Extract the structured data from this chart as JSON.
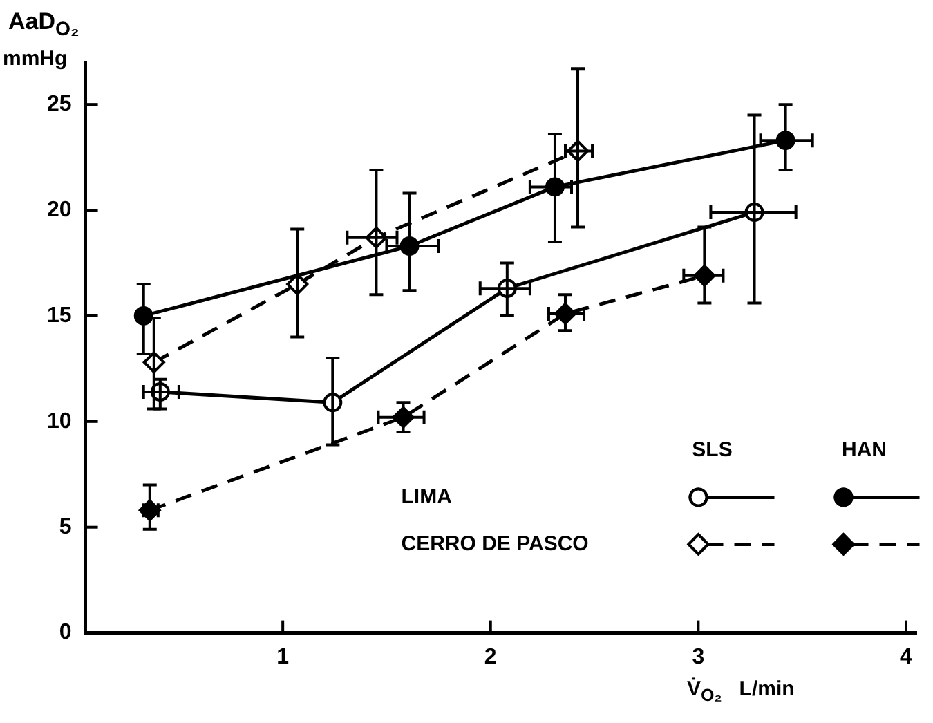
{
  "chart_data": {
    "type": "line",
    "ylabel": "AaD$_{O₂}$ mmHg",
    "xlabel": "V̇$_{O₂}$   L/min",
    "xlim": [
      0.05,
      4.05
    ],
    "xticks": [
      1,
      2,
      3,
      4
    ],
    "ylim": [
      0,
      27
    ],
    "yticks": [
      0,
      5,
      10,
      15,
      20,
      25
    ],
    "grid": false,
    "annotations": [
      "SLS",
      "HAN",
      "LIMA",
      "CERRO DE PASCO"
    ],
    "series": [
      {
        "color": "#000000",
        "marker": "circle",
        "line_style": "solid",
        "x": [
          0.41,
          1.24,
          2.08,
          3.27
        ],
        "values": [
          11.4,
          10.9,
          16.3,
          19.9
        ],
        "errors": [
          [
            10.6,
            12.0
          ],
          [
            8.9,
            13.0
          ],
          [
            15.0,
            17.5
          ],
          [
            15.6,
            24.5
          ]
        ],
        "xerrors": [
          [
            0.33,
            0.5
          ],
          null,
          [
            1.95,
            2.19
          ],
          [
            3.06,
            3.47
          ]
        ]
      },
      {
        "color": "#000000",
        "marker": "circle",
        "line_style": "solid",
        "x": [
          0.33,
          1.61,
          2.31,
          3.42
        ],
        "values": [
          15.0,
          18.3,
          21.1,
          23.3
        ],
        "errors": [
          [
            13.2,
            16.5
          ],
          [
            16.2,
            20.8
          ],
          [
            18.5,
            23.6
          ],
          [
            21.9,
            25.0
          ]
        ],
        "xerrors": [
          null,
          [
            1.5,
            1.75
          ],
          [
            2.19,
            2.39
          ],
          [
            3.3,
            3.55
          ]
        ]
      },
      {
        "color": "#000000",
        "marker": "diamond",
        "line_style": "dashed",
        "x": [
          0.38,
          1.07,
          1.45,
          2.42
        ],
        "values": [
          12.8,
          16.5,
          18.7,
          22.8
        ],
        "errors": [
          [
            10.6,
            14.9
          ],
          [
            14.0,
            19.1
          ],
          [
            16.0,
            21.9
          ],
          [
            19.2,
            26.7
          ]
        ],
        "xerrors": [
          null,
          null,
          [
            1.31,
            1.55
          ],
          [
            2.36,
            2.49
          ]
        ]
      },
      {
        "color": "#000000",
        "marker": "diamond",
        "line_style": "dashed",
        "x": [
          0.36,
          1.58,
          2.36,
          3.03
        ],
        "values": [
          5.8,
          10.2,
          15.1,
          16.9
        ],
        "errors": [
          [
            4.9,
            7.0
          ],
          [
            9.5,
            10.9
          ],
          [
            14.3,
            16.0
          ],
          [
            15.6,
            19.2
          ]
        ],
        "xerrors": [
          [
            0.33,
            0.4
          ],
          [
            1.46,
            1.68
          ],
          [
            2.28,
            2.45
          ],
          [
            2.93,
            3.12
          ]
        ]
      }
    ]
  }
}
